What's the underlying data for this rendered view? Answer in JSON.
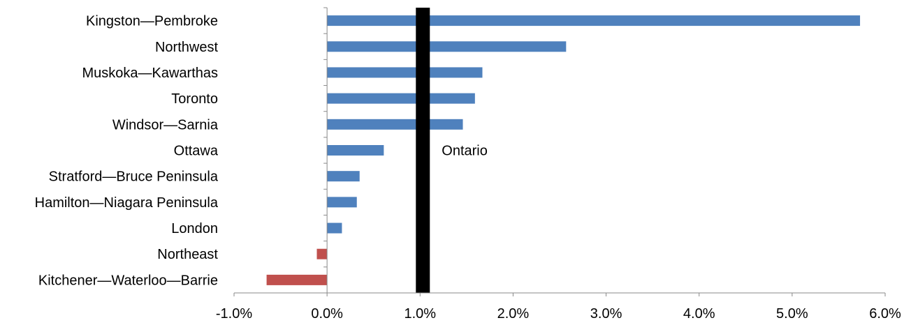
{
  "chart_data": {
    "type": "bar",
    "orientation": "horizontal",
    "categories": [
      "Kingston—Pembroke",
      "Northwest",
      "Muskoka—Kawarthas",
      "Toronto",
      "Windsor—Sarnia",
      "Ottawa",
      "Stratford—Bruce Peninsula",
      "Hamilton—Niagara Peninsula",
      "London",
      "Northeast",
      "Kitchener—Waterloo—Barrie"
    ],
    "values": [
      5.73,
      2.57,
      1.67,
      1.59,
      1.46,
      0.61,
      0.35,
      0.32,
      0.16,
      -0.11,
      -0.65
    ],
    "value_unit": "%",
    "xlim": [
      -1.0,
      6.0
    ],
    "xticks": [
      -1.0,
      0.0,
      1.0,
      2.0,
      3.0,
      4.0,
      5.0,
      6.0
    ],
    "xtick_labels": [
      "-1.0%",
      "0.0%",
      "1.0%",
      "2.0%",
      "3.0%",
      "4.0%",
      "5.0%",
      "6.0%"
    ],
    "positive_color": "#4f81bd",
    "negative_color": "#c0504d",
    "reference_line": {
      "label": "Ontario",
      "value": 1.03,
      "color": "#000000"
    },
    "title": "",
    "xlabel": "",
    "ylabel": "",
    "grid": false,
    "legend": "none"
  }
}
